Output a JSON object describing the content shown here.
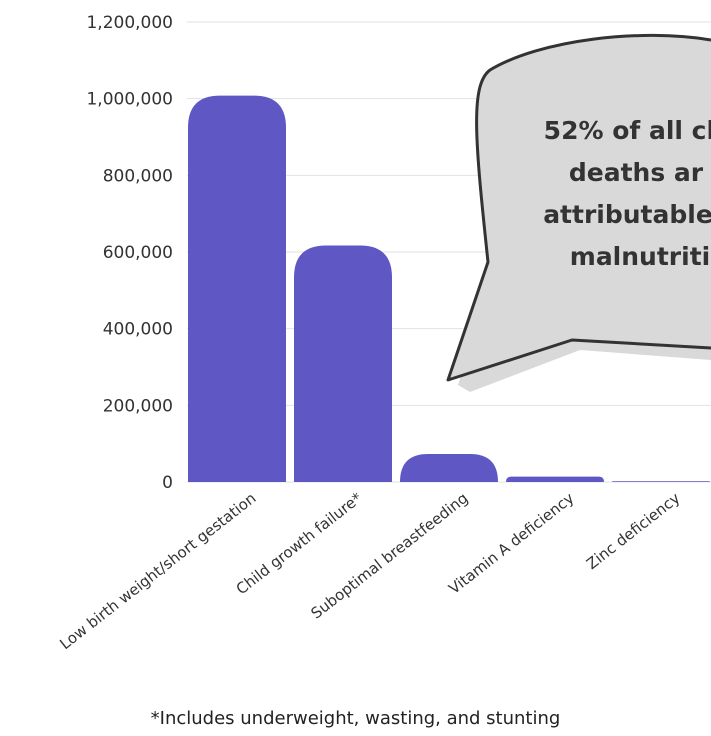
{
  "chart_data": {
    "type": "bar",
    "categories": [
      "Low birth weight/short gestation",
      "Child growth failure*",
      "Suboptimal breastfeeding",
      "Vitamin A deficiency",
      "Zinc deficiency"
    ],
    "values": [
      1008000,
      617000,
      73000,
      14000,
      2000
    ],
    "ylim": [
      0,
      1200000
    ],
    "yticks": [
      0,
      200000,
      400000,
      600000,
      800000,
      1000000,
      1200000
    ],
    "ytick_labels": [
      "0",
      "200,000",
      "400,000",
      "600,000",
      "800,000",
      "1,000,000",
      "1,200,000"
    ],
    "grid": true,
    "bar_color": "#5f57c4",
    "title": "",
    "xlabel": "",
    "ylabel": ""
  },
  "callout": {
    "lines": [
      "52% of all ch",
      "deaths ar",
      "attributable",
      "malnutriti"
    ],
    "fill": "#d9d9d9",
    "stroke": "#333333"
  },
  "footnote": "*Includes underweight, wasting, and stunting"
}
